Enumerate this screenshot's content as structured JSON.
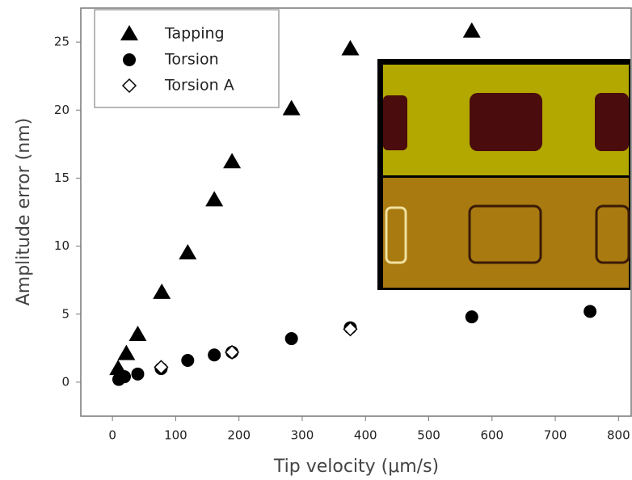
{
  "chart_data": {
    "type": "scatter",
    "xlabel": "Tip velocity (μm/s)",
    "ylabel": "Amplitude error (nm)",
    "xlim": [
      -50,
      820
    ],
    "xticks": [
      0,
      100,
      200,
      300,
      400,
      500,
      600,
      700,
      800
    ],
    "ylim": [
      -2.5,
      27.5
    ],
    "yticks": [
      0,
      5,
      10,
      15,
      20,
      25
    ],
    "legend": "upper left",
    "series": [
      {
        "name": "Tapping",
        "color": "#000000",
        "marker": "triangle",
        "x": [
          9,
          22,
          40,
          78,
          119,
          161,
          189,
          283,
          376,
          568
        ],
        "values": [
          1.0,
          2.1,
          3.5,
          6.6,
          9.5,
          13.4,
          16.2,
          20.1,
          24.5,
          25.8
        ]
      },
      {
        "name": "Torsion",
        "color": "#000000",
        "marker": "circle",
        "x": [
          10,
          19,
          40,
          77,
          119,
          161,
          189,
          283,
          376,
          568,
          755
        ],
        "values": [
          0.2,
          0.4,
          0.6,
          1.0,
          1.6,
          2.0,
          2.2,
          3.2,
          4.0,
          4.8,
          5.2
        ]
      },
      {
        "name": "Torsion A",
        "color": "#000000",
        "marker": "diamond",
        "x": [
          77,
          189,
          376
        ],
        "values": [
          1.1,
          2.2,
          3.9
        ]
      }
    ]
  }
}
